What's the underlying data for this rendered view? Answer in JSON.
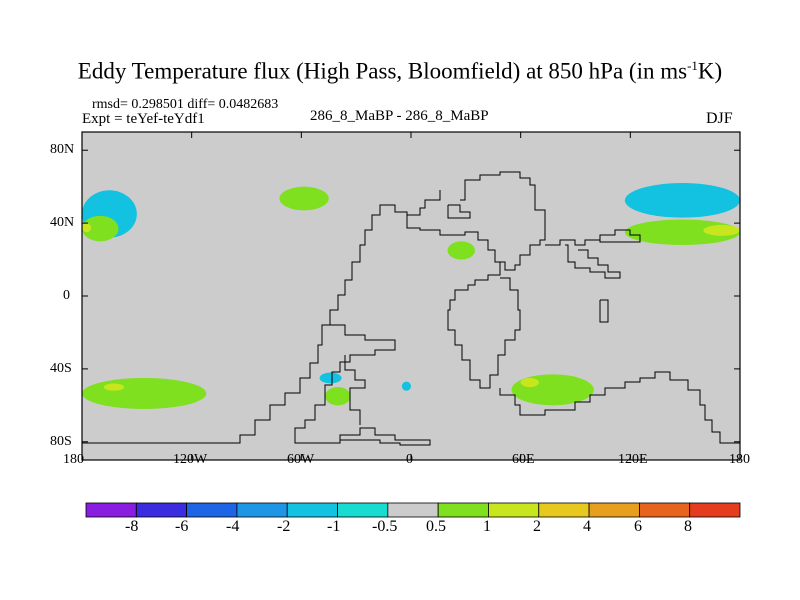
{
  "figure": {
    "title_main": "Eddy Temperature flux (High Pass, Bloomfield) at 850 hPa (in ms",
    "title_sup": "-1",
    "title_end": "K)",
    "stats": "rmsd= 0.298501 diff= 0.0482683",
    "experiment": "Expt = teYef-teYdf1",
    "center_label": "286_8_MaBP - 286_8_MaBP",
    "season": "DJF"
  },
  "chart_data": {
    "type": "heatmap",
    "variable": "Eddy temperature flux difference",
    "units": "m s-1 K",
    "level": "850 hPa",
    "lat_range": [
      -90,
      90
    ],
    "lon_range": [
      -180,
      180
    ],
    "x_ticks": [
      "180",
      "120W",
      "60W",
      "0",
      "60E",
      "120E",
      "180"
    ],
    "x_tick_values": [
      -180,
      -120,
      -60,
      0,
      60,
      120,
      180
    ],
    "y_ticks": [
      "80N",
      "40N",
      "0",
      "40S",
      "80S"
    ],
    "y_tick_values": [
      80,
      40,
      0,
      -40,
      -80
    ],
    "colorbar_levels": [
      "-8",
      "-6",
      "-4",
      "-2",
      "-1",
      "-0.5",
      "0.5",
      "1",
      "2",
      "4",
      "6",
      "8"
    ],
    "colorbar_colors": [
      "#8a1ee0",
      "#3c2ce0",
      "#1e64e6",
      "#1e96e6",
      "#12c2e0",
      "#18dcd0",
      "#cccccc",
      "#7ee01e",
      "#c8e61e",
      "#e6c81e",
      "#e6a01e",
      "#e6641e",
      "#e63c1e"
    ],
    "background_color": "#cccccc",
    "regions": [
      {
        "name": "north-atlantic-west-teal",
        "lon": [
          -180,
          -150
        ],
        "lat": [
          32,
          58
        ],
        "level": "-1"
      },
      {
        "name": "north-pacific-west-green",
        "lon": [
          -180,
          -160
        ],
        "lat": [
          30,
          44
        ],
        "level": "0.5"
      },
      {
        "name": "north-pacific-west-yellow",
        "lon": [
          -180,
          -175
        ],
        "lat": [
          35,
          40
        ],
        "level": "1"
      },
      {
        "name": "north-atlantic-green-patch",
        "lon": [
          -72,
          -45
        ],
        "lat": [
          47,
          60
        ],
        "level": "0.5"
      },
      {
        "name": "north-pacific-east-teal",
        "lon": [
          117,
          180
        ],
        "lat": [
          43,
          62
        ],
        "level": "-1"
      },
      {
        "name": "north-pacific-east-green",
        "lon": [
          117,
          180
        ],
        "lat": [
          28,
          42
        ],
        "level": "0.5"
      },
      {
        "name": "north-pacific-east-yellow",
        "lon": [
          160,
          180
        ],
        "lat": [
          33,
          39
        ],
        "level": "1"
      },
      {
        "name": "mediterranean-green",
        "lon": [
          20,
          35
        ],
        "lat": [
          20,
          30
        ],
        "level": "0.5"
      },
      {
        "name": "southern-ocean-west-green",
        "lon": [
          -180,
          -112
        ],
        "lat": [
          -62,
          -45
        ],
        "level": "0.5"
      },
      {
        "name": "southern-ocean-west-yellow",
        "lon": [
          -168,
          -157
        ],
        "lat": [
          -52,
          -48
        ],
        "level": "1"
      },
      {
        "name": "southern-ocean-central-green",
        "lon": [
          -47,
          -33
        ],
        "lat": [
          -60,
          -50
        ],
        "level": "0.5"
      },
      {
        "name": "southern-ocean-central-teal",
        "lon": [
          -50,
          -38
        ],
        "lat": [
          -48,
          -42
        ],
        "level": "-1"
      },
      {
        "name": "southern-ocean-africa-teal",
        "lon": [
          -5,
          0
        ],
        "lat": [
          -52,
          -47
        ],
        "level": "-1"
      },
      {
        "name": "southern-ocean-indian-green",
        "lon": [
          55,
          100
        ],
        "lat": [
          -60,
          -43
        ],
        "level": "0.5"
      },
      {
        "name": "southern-ocean-indian-yellow",
        "lon": [
          60,
          70
        ],
        "lat": [
          -50,
          -45
        ],
        "level": "1"
      }
    ]
  }
}
